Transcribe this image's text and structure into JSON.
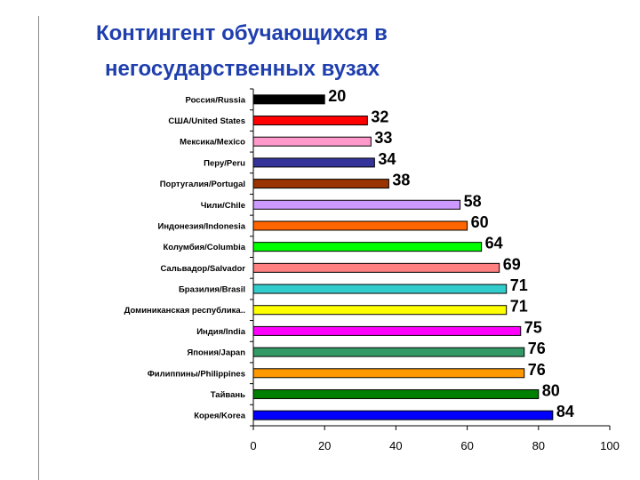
{
  "title_line1": "Контингент обучающихся в",
  "title_line2": "негосударственных вузах",
  "chart_data": {
    "type": "bar",
    "orientation": "horizontal",
    "title": "Контингент обучающихся в негосударственных вузах",
    "categories": [
      "Россия/Russia",
      "США/United States",
      "Мексика/Mexico",
      "Перу/Peru",
      "Португалия/Portugal",
      "Чили/Chile",
      "Индонезия/Indonesia",
      "Колумбия/Columbia",
      "Сальвадор/Salvador",
      "Бразилия/Brasil",
      "Доминиканская республика..",
      "Индия/India",
      "Япония/Japan",
      "Филиппины/Philippines",
      "Тайвань",
      "Корея/Korea"
    ],
    "values": [
      20,
      32,
      33,
      34,
      38,
      58,
      60,
      64,
      69,
      71,
      71,
      75,
      76,
      76,
      80,
      84
    ],
    "value_labels": [
      "20",
      "32",
      "33",
      "34",
      "38",
      "58",
      "60",
      "64",
      "69",
      "71",
      "71",
      "75",
      "76",
      "76",
      "80",
      "84"
    ],
    "colors": [
      "#000000",
      "#ff0000",
      "#ff99cc",
      "#333399",
      "#993300",
      "#cc99ff",
      "#ff6600",
      "#00ff00",
      "#ff8080",
      "#33cccc",
      "#ffff00",
      "#ff00ff",
      "#339966",
      "#ff9900",
      "#008000",
      "#0000ff"
    ],
    "xlim": [
      0,
      100
    ],
    "xticks": [
      "0",
      "20",
      "40",
      "60",
      "80",
      "100"
    ],
    "grid": false,
    "legend": "none"
  }
}
